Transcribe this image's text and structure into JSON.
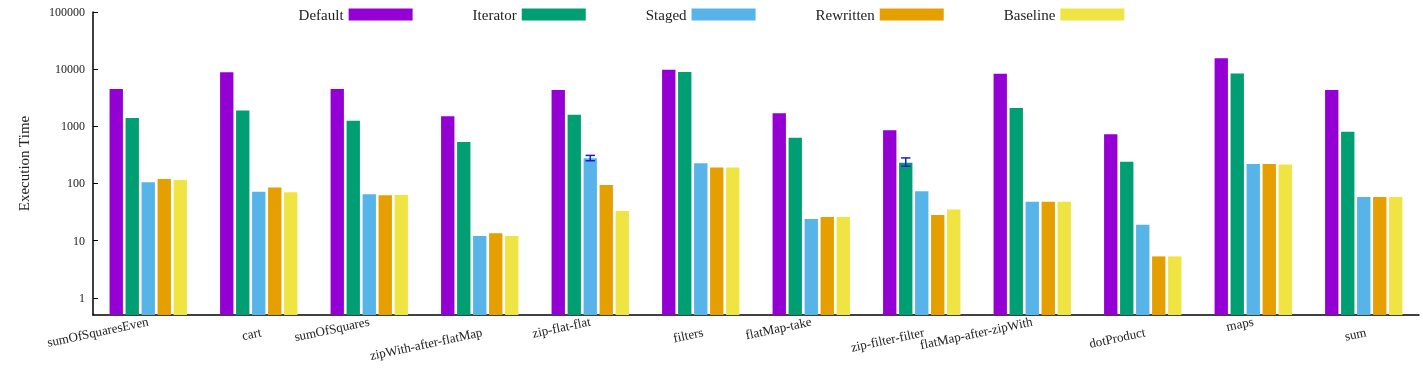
{
  "chart_data": {
    "type": "bar",
    "ylabel": "Execution Time",
    "categories": [
      "sumOfSquaresEven",
      "cart",
      "sumOfSquares",
      "zipWith-after-flatMap",
      "zip-flat-flat",
      "filters",
      "flatMap-take",
      "zip-filter-filter",
      "flatMap-after-zipWith",
      "dotProduct",
      "maps",
      "sum"
    ],
    "series": [
      {
        "name": "Default",
        "color": "#9400d3",
        "values": [
          4500,
          8800,
          4500,
          1500,
          4300,
          9800,
          1700,
          850,
          8300,
          730,
          15500,
          4300
        ]
      },
      {
        "name": "Iterator",
        "color": "#009e73",
        "values": [
          1400,
          1900,
          1250,
          530,
          1600,
          8900,
          630,
          230,
          2100,
          240,
          8400,
          800
        ],
        "errors": [
          null,
          null,
          null,
          null,
          null,
          null,
          null,
          [
            200,
            280
          ],
          null,
          null,
          null,
          null
        ]
      },
      {
        "name": "Staged",
        "color": "#56b4e9",
        "values": [
          105,
          72,
          65,
          12,
          275,
          225,
          24,
          73,
          48,
          19,
          220,
          58
        ],
        "errors": [
          null,
          null,
          null,
          null,
          [
            250,
            310
          ],
          null,
          null,
          null,
          null,
          null,
          null,
          null
        ]
      },
      {
        "name": "Rewritten",
        "color": "#e69f00",
        "values": [
          120,
          85,
          62,
          13.5,
          94,
          190,
          26,
          28,
          48,
          5.3,
          220,
          58
        ]
      },
      {
        "name": "Baseline",
        "color": "#f0e442",
        "values": [
          115,
          70,
          63,
          12,
          33,
          190,
          26,
          35,
          48,
          5.3,
          215,
          58
        ]
      }
    ],
    "log": "y",
    "ylim": [
      0.5,
      100000
    ],
    "yticks": [
      1,
      10,
      100,
      1000,
      10000,
      100000
    ],
    "grid": false,
    "legend": "top"
  }
}
